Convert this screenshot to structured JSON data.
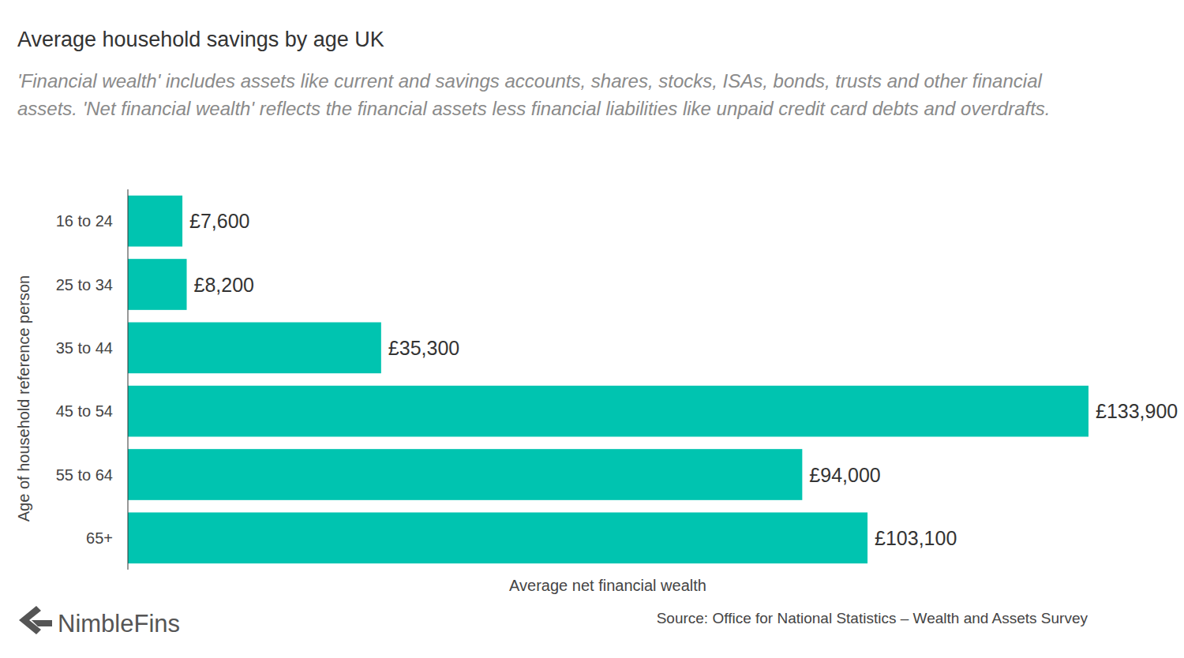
{
  "chart_data": {
    "type": "bar",
    "orientation": "horizontal",
    "title": "Average household savings by age UK",
    "subtitle": "'Financial wealth' includes assets like current and savings accounts, shares, stocks, ISAs, bonds, trusts and other financial assets. 'Net financial wealth' reflects the financial assets less financial liabilities like unpaid credit card debts and overdrafts.",
    "x_label": "Average net financial wealth",
    "y_label": "Age of household reference person",
    "categories": [
      "16 to 24",
      "25 to 34",
      "35 to 44",
      "45 to 54",
      "55 to 64",
      "65+"
    ],
    "values": [
      7600,
      8200,
      35300,
      133900,
      94000,
      103100
    ],
    "value_labels": [
      "£7,600",
      "£8,200",
      "£35,300",
      "£133,900",
      "£94,000",
      "£103,100"
    ],
    "data_labels": true,
    "color": "#00c4b0",
    "xlim": [
      0,
      133900
    ],
    "grid": false,
    "tick_labels": "y",
    "source": "Source: Office for National Statistics – Wealth and Assets Survey",
    "logo": "NimbleFins"
  }
}
